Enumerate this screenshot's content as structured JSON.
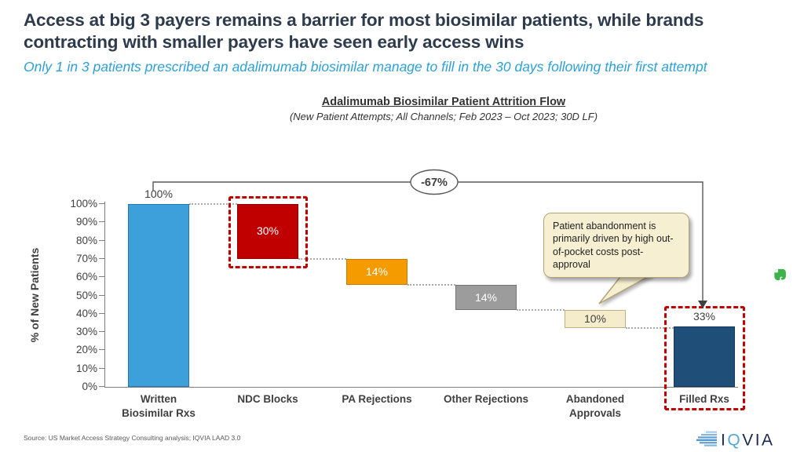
{
  "header": {
    "title": "Access at big 3 payers remains a barrier for most biosimilar patients, while brands contracting with smaller payers have seen early access wins",
    "subtitle": "Only 1 in 3 patients prescribed an adalimumab biosimilar manage to fill in the 30 days following their first attempt"
  },
  "chart": {
    "title": "Adalimumab Biosimilar Patient Attrition Flow",
    "subtitle": "(New Patient Attempts; All Channels; Feb 2023 – Oct 2023; 30D LF)",
    "ylabel": "% of New Patients",
    "callout": "Patient abandonment is primarily driven by high out-of-pocket costs post-approval"
  },
  "chart_data": {
    "type": "bar",
    "subtype": "waterfall",
    "title": "Adalimumab Biosimilar Patient Attrition Flow",
    "subtitle": "(New Patient Attempts; All Channels; Feb 2023 – Oct 2023; 30D LF)",
    "xlabel": "",
    "ylabel": "% of New Patients",
    "ylim": [
      0,
      100
    ],
    "ytick_step": 10,
    "ytick_suffix": "%",
    "grid": false,
    "net_change_label": "-67%",
    "categories": [
      "Written Biosimilar Rxs",
      "NDC Blocks",
      "PA Rejections",
      "Other Rejections",
      "Abandoned Approvals",
      "Filled Rxs"
    ],
    "bars": [
      {
        "label": "Written Biosimilar Rxs",
        "label_lines": [
          "Written",
          "Biosimilar Rxs"
        ],
        "kind": "total",
        "start": 0,
        "end": 100,
        "value": 100,
        "value_label": "100%",
        "label_position": "above",
        "label_color": "#404040",
        "color": "#3EA0DB",
        "border_color": "#2a77ae",
        "highlighted": false
      },
      {
        "label": "NDC Blocks",
        "label_lines": [
          "NDC Blocks"
        ],
        "kind": "decrease",
        "start": 100,
        "end": 70,
        "value": -30,
        "value_label": "30%",
        "label_position": "inside",
        "label_color": "#ffffff",
        "color": "#C00000",
        "border_color": "#8b0000",
        "highlighted": true
      },
      {
        "label": "PA Rejections",
        "label_lines": [
          "PA Rejections"
        ],
        "kind": "decrease",
        "start": 70,
        "end": 56,
        "value": -14,
        "value_label": "14%",
        "label_position": "inside",
        "label_color": "#ffffff",
        "color": "#F59B00",
        "border_color": "#c87d00",
        "highlighted": false
      },
      {
        "label": "Other Rejections",
        "label_lines": [
          "Other Rejections"
        ],
        "kind": "decrease",
        "start": 56,
        "end": 42,
        "value": -14,
        "value_label": "14%",
        "label_position": "inside",
        "label_color": "#ffffff",
        "color": "#9C9C9C",
        "border_color": "#757575",
        "highlighted": false
      },
      {
        "label": "Abandoned Approvals",
        "label_lines": [
          "Abandoned",
          "Approvals"
        ],
        "kind": "decrease",
        "start": 42,
        "end": 32,
        "value": -10,
        "value_label": "10%",
        "label_position": "inside",
        "label_color": "#404040",
        "color": "#F5ECCB",
        "border_color": "#bfb184",
        "highlighted": false
      },
      {
        "label": "Filled Rxs",
        "label_lines": [
          "Filled Rxs"
        ],
        "kind": "total",
        "start": 0,
        "end": 33,
        "value": 33,
        "value_label": "33%",
        "label_position": "above",
        "label_color": "#404040",
        "color": "#1F4E79",
        "border_color": "#16395a",
        "highlighted": true
      }
    ],
    "annotations": [
      {
        "name": "net-change-bracket",
        "text": "-67%",
        "from_category": "Written Biosimilar Rxs",
        "to_category": "Filled Rxs"
      },
      {
        "name": "callout-bubble",
        "text": "Patient abandonment is primarily driven by high out-of-pocket costs post-approval",
        "points_to": "Abandoned Approvals"
      }
    ],
    "highlight_color": "#C00000",
    "legend": null
  },
  "footer": {
    "source": "Source: US Market Access Strategy Consulting analysis; IQVIA LAAD 3.0",
    "logo_text": "IQVIA"
  },
  "colors": {
    "title_text": "#2e3b4d",
    "subtitle_text": "#2da0d8",
    "highlight_dashed": "#C00000",
    "callout_fill": "#F7EFD2",
    "evernote_green": "#3DB24B",
    "logo_navy": "#1b2a4c",
    "logo_light_blue": "#55a8d6"
  }
}
